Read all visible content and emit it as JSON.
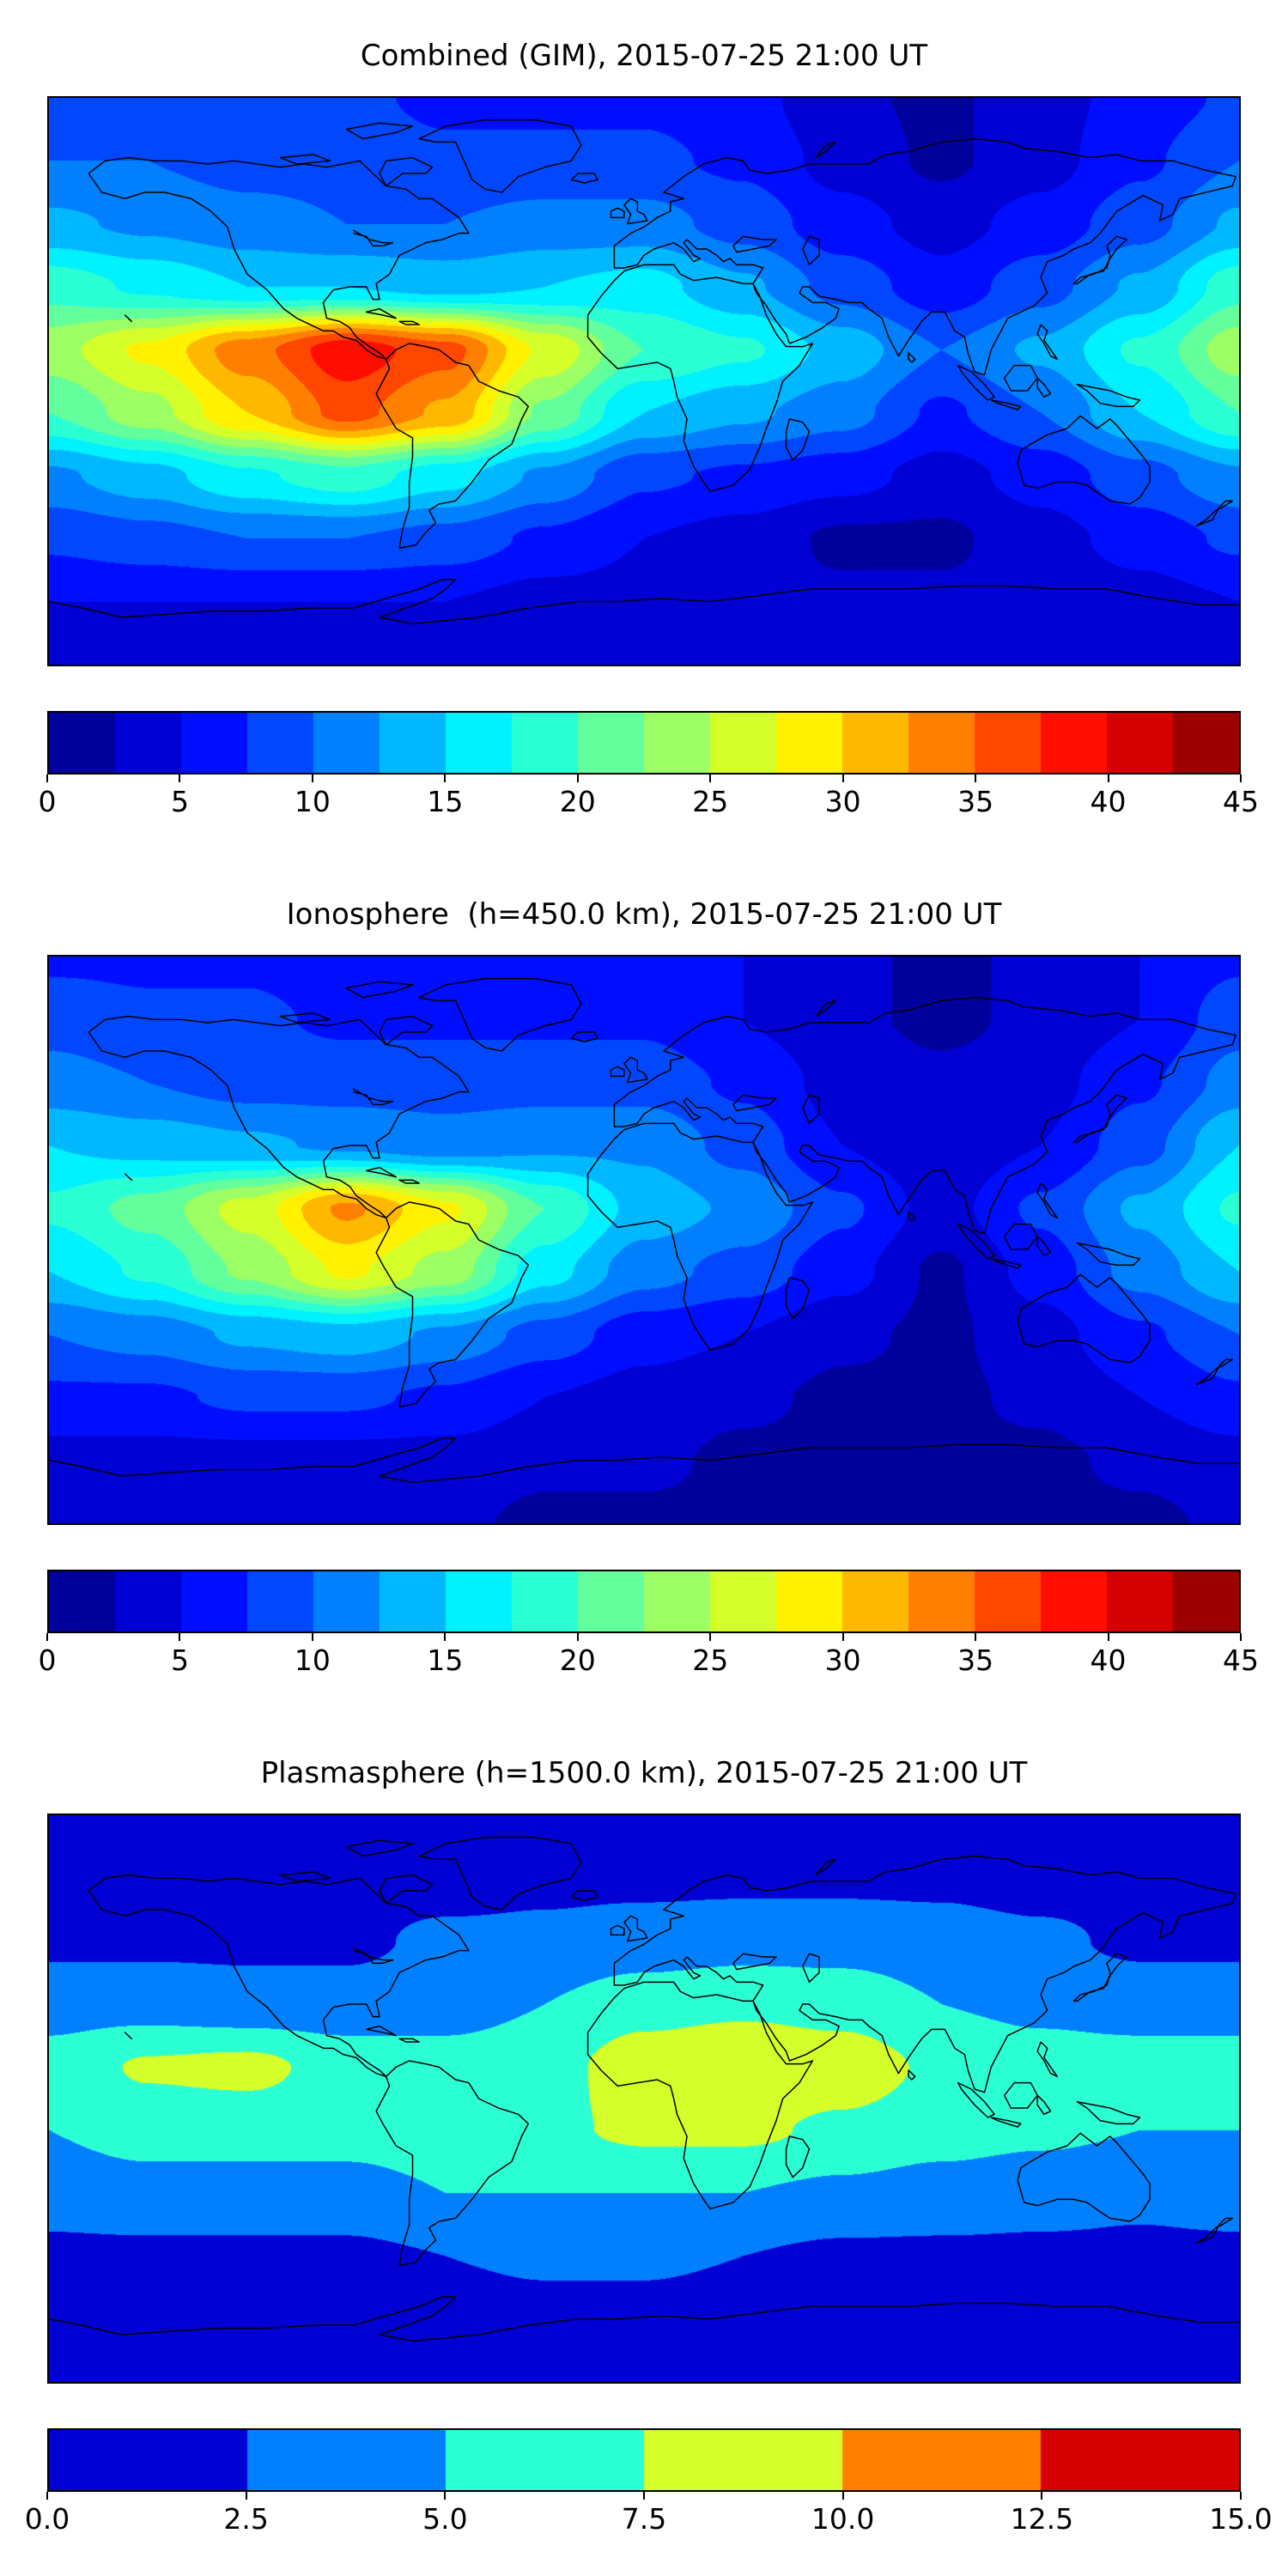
{
  "figure": {
    "background": "#ffffff",
    "text_color": "#000000"
  },
  "panels": [
    {
      "id": "combined",
      "title": "Combined (GIM), 2015-07-25 21:00 UT",
      "colorbar": {
        "vmin": 0,
        "vmax": 45,
        "step": 2.5,
        "segments": 18,
        "tick_labels": [
          "0",
          "5",
          "10",
          "15",
          "20",
          "25",
          "30",
          "35",
          "40",
          "45"
        ]
      }
    },
    {
      "id": "ionosphere",
      "title": "Ionosphere  (h=450.0 km), 2015-07-25 21:00 UT",
      "colorbar": {
        "vmin": 0,
        "vmax": 45,
        "step": 2.5,
        "segments": 18,
        "tick_labels": [
          "0",
          "5",
          "10",
          "15",
          "20",
          "25",
          "30",
          "35",
          "40",
          "45"
        ]
      }
    },
    {
      "id": "plasmasphere",
      "title": "Plasmasphere (h=1500.0 km), 2015-07-25 21:00 UT",
      "colorbar": {
        "vmin": 0,
        "vmax": 15,
        "step": 2.5,
        "segments": 6,
        "tick_labels": [
          "0.0",
          "2.5",
          "5.0",
          "7.5",
          "10.0",
          "12.5",
          "15.0"
        ]
      }
    }
  ],
  "chart_data": [
    {
      "type": "heatmap",
      "title": "Combined (GIM), 2015-07-25 21:00 UT",
      "projection": "equirectangular world map, lon -180..180, lat 90..-90",
      "colormap": "jet",
      "vmin": 0,
      "vmax": 45,
      "contour_step": 2.5,
      "colorbar_ticks": [
        0,
        5,
        10,
        15,
        20,
        25,
        30,
        35,
        40,
        45
      ],
      "lon": [
        -180,
        -150,
        -120,
        -90,
        -60,
        -30,
        0,
        30,
        60,
        90,
        120,
        150,
        180
      ],
      "lat": [
        90,
        70,
        50,
        30,
        10,
        -10,
        -30,
        -50,
        -70,
        -90
      ],
      "values": [
        [
          8,
          8,
          8,
          8,
          7,
          7,
          7,
          6,
          3,
          2,
          4,
          6,
          8
        ],
        [
          10,
          10,
          9,
          9,
          8,
          8,
          8,
          7,
          4,
          2,
          4,
          7,
          10
        ],
        [
          13,
          12,
          11,
          10,
          10,
          11,
          11,
          9,
          6,
          4,
          6,
          9,
          13
        ],
        [
          19,
          17,
          15,
          15,
          14,
          15,
          16,
          13,
          9,
          6,
          9,
          13,
          19
        ],
        [
          24,
          28,
          34,
          39,
          36,
          27,
          20,
          18,
          14,
          10,
          13,
          18,
          24
        ],
        [
          20,
          24,
          30,
          36,
          32,
          22,
          15,
          13,
          11,
          7,
          10,
          15,
          20
        ],
        [
          12,
          14,
          17,
          19,
          16,
          12,
          8,
          7,
          6,
          4,
          6,
          9,
          12
        ],
        [
          8,
          9,
          10,
          10,
          9,
          7,
          5,
          4,
          2,
          2,
          4,
          6,
          8
        ],
        [
          5,
          5,
          5,
          5,
          5,
          4,
          4,
          3,
          3,
          3,
          3,
          4,
          5
        ],
        [
          4,
          4,
          4,
          4,
          4,
          3,
          3,
          3,
          3,
          3,
          3,
          3,
          4
        ]
      ]
    },
    {
      "type": "heatmap",
      "title": "Ionosphere  (h=450.0 km), 2015-07-25 21:00 UT",
      "projection": "equirectangular world map, lon -180..180, lat 90..-90",
      "colormap": "jet",
      "vmin": 0,
      "vmax": 45,
      "contour_step": 2.5,
      "colorbar_ticks": [
        0,
        5,
        10,
        15,
        20,
        25,
        30,
        35,
        40,
        45
      ],
      "lon": [
        -180,
        -150,
        -120,
        -90,
        -60,
        -30,
        0,
        30,
        60,
        90,
        120,
        150,
        180
      ],
      "lat": [
        90,
        70,
        50,
        30,
        10,
        -10,
        -30,
        -50,
        -70,
        -90
      ],
      "values": [
        [
          7,
          7,
          7,
          6,
          6,
          6,
          6,
          5,
          3,
          2,
          3,
          5,
          7
        ],
        [
          9,
          8,
          8,
          7,
          7,
          7,
          7,
          5,
          3,
          2,
          3,
          5,
          9
        ],
        [
          11,
          10,
          9,
          9,
          9,
          9,
          9,
          7,
          4,
          3,
          4,
          7,
          11
        ],
        [
          15,
          14,
          13,
          12,
          11,
          12,
          12,
          9,
          5,
          3,
          5,
          9,
          15
        ],
        [
          18,
          21,
          26,
          33,
          28,
          20,
          14,
          12,
          8,
          4,
          8,
          13,
          18
        ],
        [
          15,
          18,
          23,
          28,
          24,
          16,
          11,
          9,
          6,
          2,
          6,
          11,
          15
        ],
        [
          10,
          11,
          13,
          14,
          12,
          9,
          6,
          5,
          3,
          2,
          4,
          7,
          10
        ],
        [
          7,
          7,
          8,
          8,
          7,
          5,
          4,
          3,
          2,
          2,
          3,
          5,
          7
        ],
        [
          4,
          4,
          4,
          4,
          4,
          3,
          3,
          2,
          2,
          2,
          2,
          3,
          4
        ],
        [
          3,
          3,
          3,
          3,
          3,
          2,
          2,
          2,
          2,
          2,
          2,
          2,
          3
        ]
      ]
    },
    {
      "type": "heatmap",
      "title": "Plasmasphere (h=1500.0 km), 2015-07-25 21:00 UT",
      "projection": "equirectangular world map, lon -180..180, lat 90..-90",
      "colormap": "jet",
      "vmin": 0,
      "vmax": 15,
      "contour_step": 2.5,
      "colorbar_ticks": [
        0.0,
        2.5,
        5.0,
        7.5,
        10.0,
        12.5,
        15.0
      ],
      "lon": [
        -180,
        -150,
        -120,
        -90,
        -60,
        -30,
        0,
        30,
        60,
        90,
        120,
        150,
        180
      ],
      "lat": [
        90,
        70,
        50,
        30,
        10,
        -10,
        -30,
        -50,
        -70,
        -90
      ],
      "values": [
        [
          1,
          1,
          1,
          1,
          1,
          1,
          1.5,
          1.5,
          1.5,
          1.5,
          1,
          1,
          1
        ],
        [
          1.5,
          1.5,
          1.5,
          1.5,
          1.5,
          2,
          2,
          2,
          2,
          2,
          1.5,
          1.5,
          1.5
        ],
        [
          2,
          2,
          2,
          2,
          3,
          3,
          3.5,
          4,
          4,
          3.5,
          3,
          2,
          2
        ],
        [
          4,
          4,
          3.5,
          3.5,
          4,
          5,
          6.5,
          7,
          6.5,
          5,
          4.5,
          4,
          4
        ],
        [
          6,
          7.8,
          8.2,
          6.5,
          6,
          6.5,
          9,
          9.8,
          9,
          7,
          6,
          6,
          6
        ],
        [
          5,
          6,
          6,
          6,
          6.5,
          7,
          8,
          8,
          7,
          6,
          5.5,
          5,
          5
        ],
        [
          3.5,
          4,
          4,
          4,
          5,
          5,
          5,
          5,
          4.5,
          4,
          3.5,
          3,
          3.5
        ],
        [
          2,
          2,
          2,
          2,
          2.5,
          3,
          3,
          2.5,
          2,
          2,
          2,
          2,
          2
        ],
        [
          1,
          1,
          1,
          1,
          1,
          1.5,
          1.5,
          1,
          1,
          1,
          1,
          1,
          1
        ],
        [
          1,
          1,
          1,
          1,
          1,
          1,
          1,
          1,
          1,
          1,
          1,
          1,
          1
        ]
      ]
    }
  ]
}
